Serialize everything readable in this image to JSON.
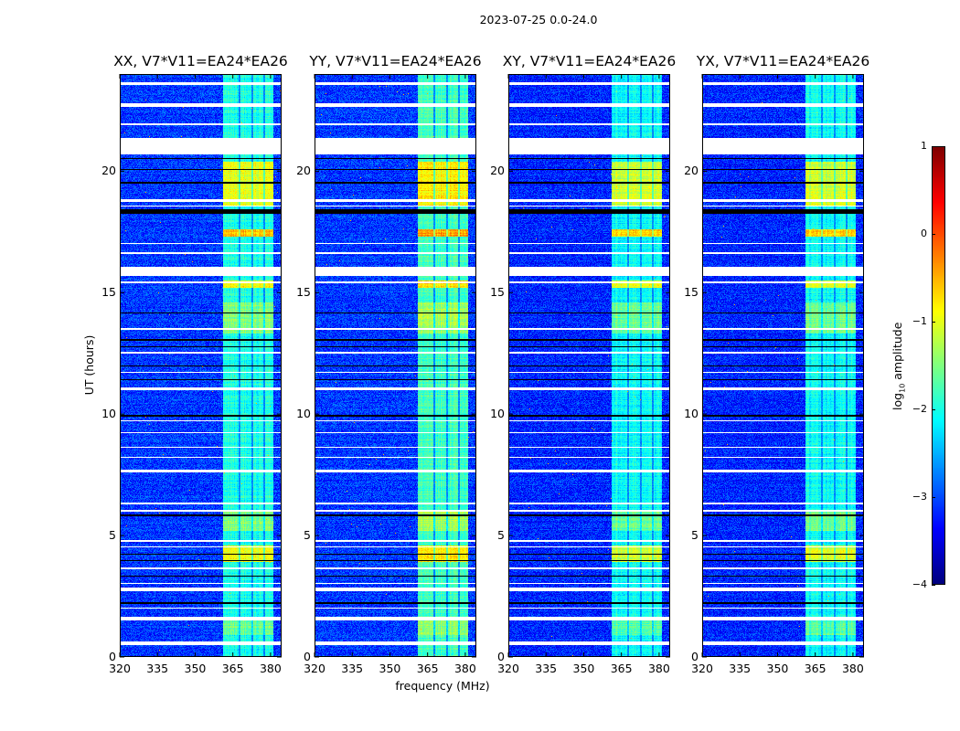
{
  "chart_data": {
    "type": "heatmap",
    "title": "2023-07-25 0.0-24.0",
    "xlabel": "frequency (MHz)",
    "ylabel": "UT (hours)",
    "xlim": [
      320,
      384.4
    ],
    "ylim": [
      0,
      24
    ],
    "xticks": [
      320,
      335,
      350,
      365,
      380
    ],
    "xtick_labels": [
      "320",
      "335",
      "350",
      "365",
      "380"
    ],
    "yticks": [
      0,
      5,
      10,
      15,
      20
    ],
    "ytick_labels": [
      "0",
      "5",
      "10",
      "15",
      "20"
    ],
    "panels": [
      {
        "title": "XX, V7*V11=EA24*EA26",
        "band_offset": 0.0,
        "bg_offset": 0.0
      },
      {
        "title": "YY, V7*V11=EA24*EA26",
        "band_offset": 0.15,
        "bg_offset": 0.0
      },
      {
        "title": "XY, V7*V11=EA24*EA26",
        "band_offset": -0.1,
        "bg_offset": -0.1
      },
      {
        "title": "YX, V7*V11=EA24*EA26",
        "band_offset": -0.1,
        "bg_offset": -0.1
      }
    ],
    "background_level": -3.1,
    "rfi_band_mhz": [
      361,
      381
    ],
    "rfi_band_gaps_mhz": [
      [
        367.3,
        368.0
      ],
      [
        372.5,
        373.2
      ],
      [
        377.3,
        378.0
      ]
    ],
    "rfi_band_level": -2.0,
    "rfi_hot_intervals": [
      {
        "ut": [
          18.6,
          20.4
        ],
        "level": -1.0
      },
      {
        "ut": [
          17.3,
          17.6
        ],
        "level": -0.6
      },
      {
        "ut": [
          15.2,
          15.5
        ],
        "level": -0.9
      },
      {
        "ut": [
          13.3,
          14.6
        ],
        "level": -1.5
      },
      {
        "ut": [
          3.9,
          4.6
        ],
        "level": -1.0
      },
      {
        "ut": [
          5.2,
          6.0
        ],
        "level": -1.5
      },
      {
        "ut": [
          0.9,
          1.6
        ],
        "level": -1.6
      }
    ],
    "flagged_ut_intervals": [
      [
        23.55,
        23.65
      ],
      [
        22.65,
        22.8
      ],
      [
        21.9,
        21.95
      ],
      [
        20.7,
        21.35
      ],
      [
        18.75,
        18.85
      ],
      [
        18.55,
        18.6
      ],
      [
        17.0,
        17.05
      ],
      [
        16.6,
        16.65
      ],
      [
        15.7,
        16.05
      ],
      [
        15.4,
        15.45
      ],
      [
        13.45,
        13.55
      ],
      [
        12.5,
        12.55
      ],
      [
        11.7,
        11.75
      ],
      [
        11.0,
        11.1
      ],
      [
        9.7,
        9.75
      ],
      [
        9.2,
        9.25
      ],
      [
        8.6,
        8.65
      ],
      [
        8.2,
        8.25
      ],
      [
        7.6,
        7.7
      ],
      [
        6.3,
        6.35
      ],
      [
        6.0,
        6.05
      ],
      [
        4.75,
        4.8
      ],
      [
        4.5,
        4.55
      ],
      [
        3.6,
        3.7
      ],
      [
        3.0,
        3.05
      ],
      [
        2.7,
        2.85
      ],
      [
        2.0,
        2.05
      ],
      [
        1.5,
        1.65
      ],
      [
        0.5,
        0.65
      ]
    ],
    "zero_ut_intervals": [
      [
        20.5,
        20.55
      ],
      [
        20.05,
        20.1
      ],
      [
        19.5,
        19.55
      ],
      [
        18.25,
        18.45
      ],
      [
        14.15,
        14.2
      ],
      [
        13.0,
        13.1
      ],
      [
        12.75,
        12.8
      ],
      [
        11.95,
        12.0
      ],
      [
        11.4,
        11.45
      ],
      [
        9.9,
        9.95
      ],
      [
        5.8,
        5.85
      ],
      [
        4.2,
        4.25
      ],
      [
        3.95,
        4.0
      ],
      [
        3.3,
        3.35
      ],
      [
        2.2,
        2.25
      ]
    ],
    "colorbar": {
      "label": "log10 amplitude",
      "range": [
        -4,
        1
      ],
      "colormap": "jet",
      "ticks": [
        1,
        0,
        -1,
        -2,
        -3,
        -4
      ],
      "tick_labels": [
        "1",
        "0",
        "−1",
        "−2",
        "−3",
        "−4"
      ]
    }
  }
}
